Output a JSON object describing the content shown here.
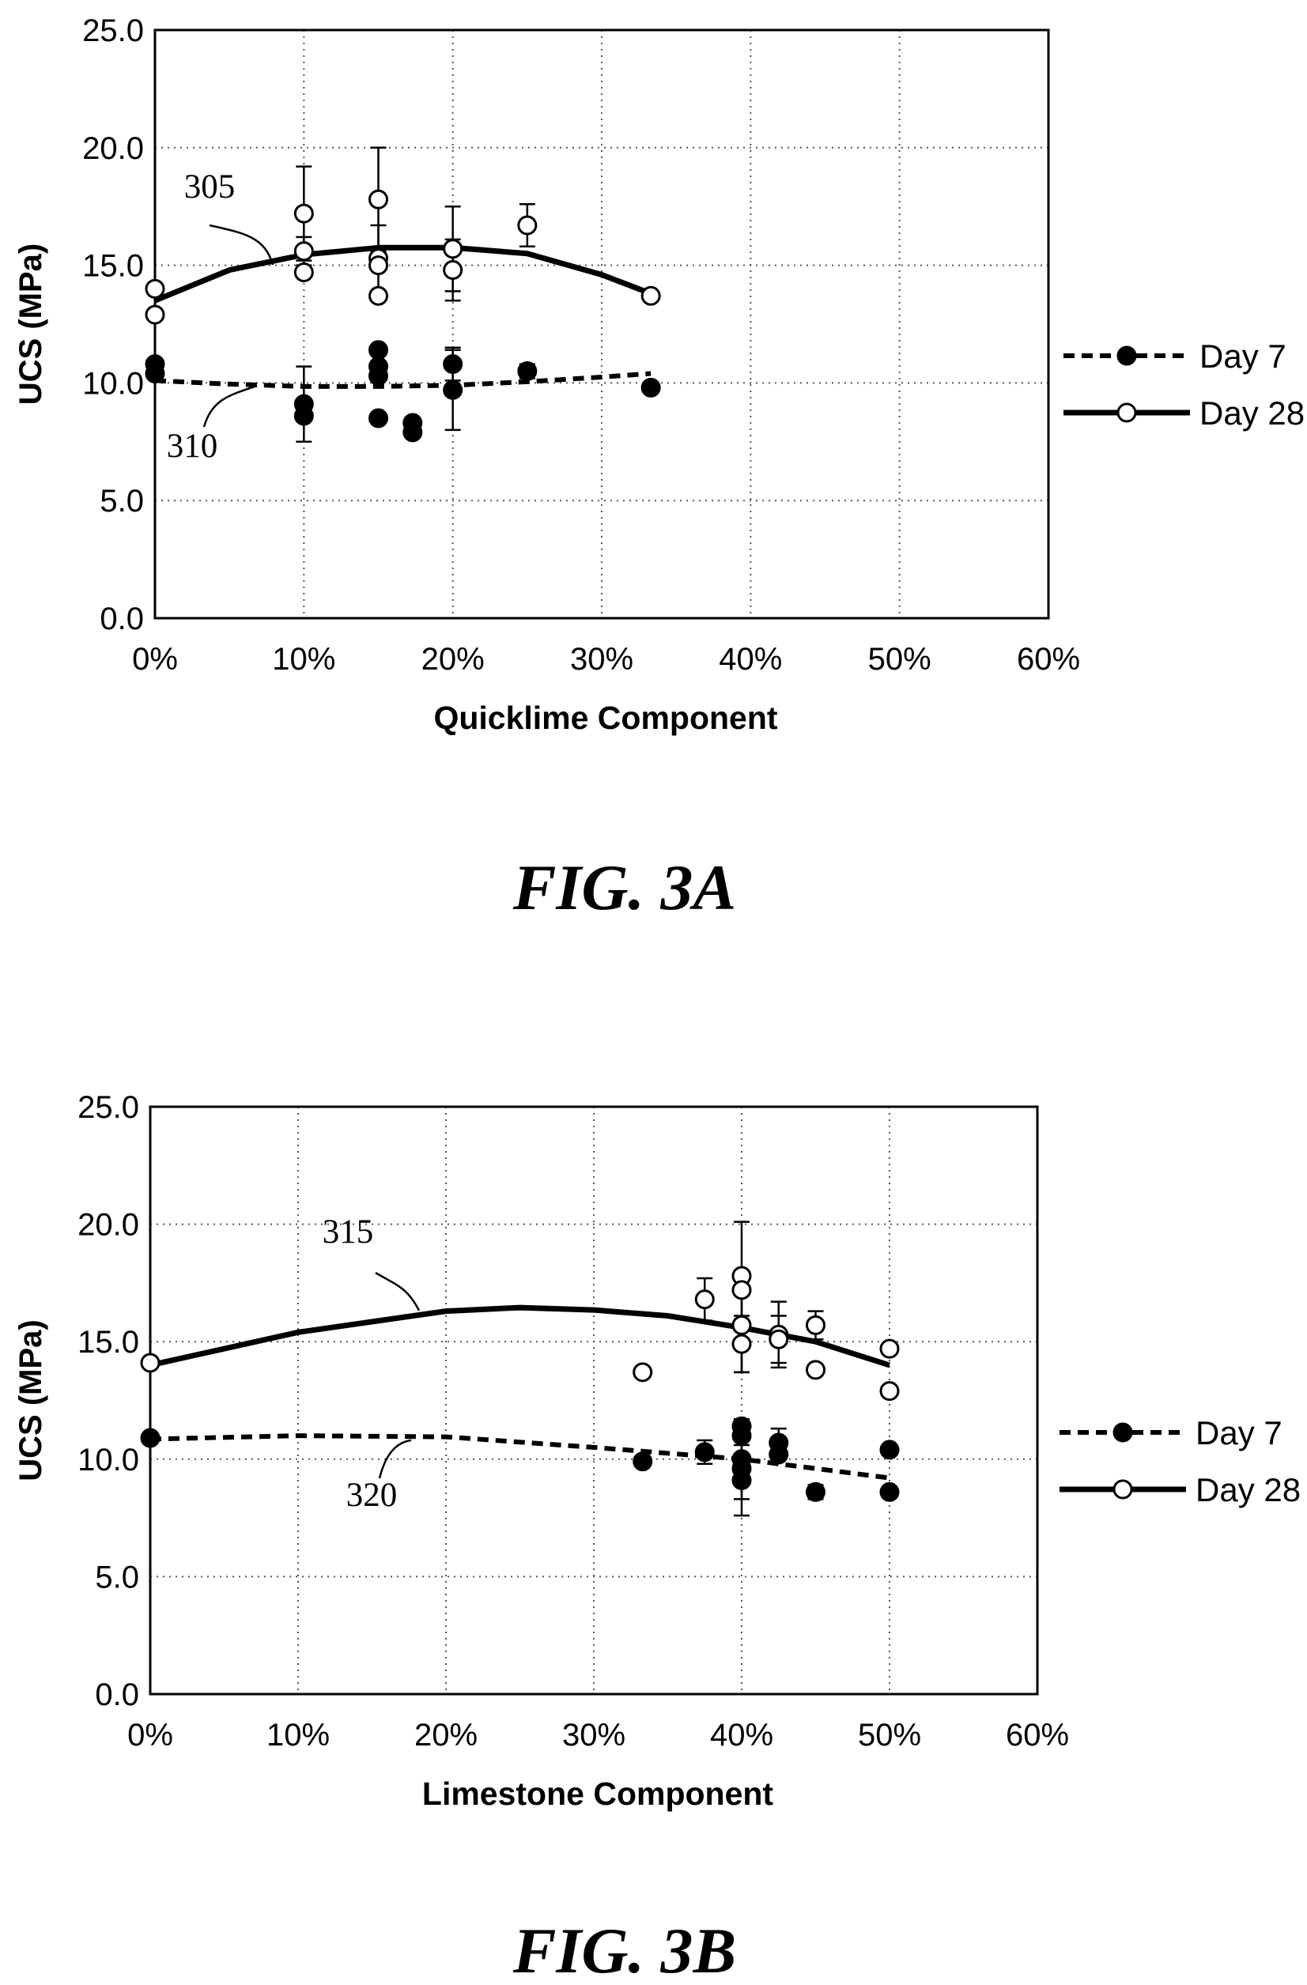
{
  "chart_data": [
    {
      "type": "scatter",
      "figure_label": "FIG. 3A",
      "xlabel": "Quicklime Component",
      "ylabel": "UCS (MPa)",
      "xlim": [
        0,
        60
      ],
      "ylim": [
        0,
        25
      ],
      "x_unit": "%",
      "xticks": [
        "0%",
        "10%",
        "20%",
        "30%",
        "40%",
        "50%",
        "60%"
      ],
      "yticks": [
        "0.0",
        "5.0",
        "10.0",
        "15.0",
        "20.0",
        "25.0"
      ],
      "grid": "dotted",
      "legend_position": "right",
      "series": [
        {
          "name": "Day 7",
          "marker": "filled-circle",
          "trend_style": "dashed",
          "points": [
            {
              "x": 0,
              "y": 10.8
            },
            {
              "x": 0,
              "y": 10.4
            },
            {
              "x": 10,
              "y": 9.1,
              "err": 1.6
            },
            {
              "x": 10,
              "y": 8.6
            },
            {
              "x": 15,
              "y": 11.4
            },
            {
              "x": 15,
              "y": 10.7
            },
            {
              "x": 15,
              "y": 10.3
            },
            {
              "x": 15,
              "y": 8.5
            },
            {
              "x": 17.3,
              "y": 8.3
            },
            {
              "x": 17.3,
              "y": 7.9
            },
            {
              "x": 20,
              "y": 10.8,
              "err": 0.7
            },
            {
              "x": 20,
              "y": 9.7,
              "err": 1.7
            },
            {
              "x": 25,
              "y": 10.5,
              "err": 0.3
            },
            {
              "x": 33.3,
              "y": 9.8
            }
          ],
          "trend": [
            [
              0,
              10.1
            ],
            [
              5,
              9.95
            ],
            [
              10,
              9.85
            ],
            [
              15,
              9.85
            ],
            [
              20,
              9.9
            ],
            [
              25,
              10.05
            ],
            [
              30,
              10.25
            ],
            [
              33.3,
              10.4
            ]
          ]
        },
        {
          "name": "Day 28",
          "marker": "open-circle",
          "trend_style": "solid",
          "points": [
            {
              "x": 0,
              "y": 14.0
            },
            {
              "x": 0,
              "y": 12.9
            },
            {
              "x": 10,
              "y": 17.2,
              "err": 2.0
            },
            {
              "x": 10,
              "y": 15.6,
              "err": 0.6
            },
            {
              "x": 10,
              "y": 14.7
            },
            {
              "x": 15,
              "y": 17.8,
              "err": 2.2
            },
            {
              "x": 15,
              "y": 15.3,
              "err": 1.4
            },
            {
              "x": 15,
              "y": 15.0
            },
            {
              "x": 15,
              "y": 13.7
            },
            {
              "x": 20,
              "y": 15.7,
              "err": 1.8
            },
            {
              "x": 20,
              "y": 14.8,
              "err": 1.3
            },
            {
              "x": 25,
              "y": 16.7,
              "err": 0.9
            },
            {
              "x": 33.3,
              "y": 13.7
            }
          ],
          "trend": [
            [
              0,
              13.5
            ],
            [
              5,
              14.8
            ],
            [
              10,
              15.45
            ],
            [
              15,
              15.75
            ],
            [
              20,
              15.75
            ],
            [
              25,
              15.5
            ],
            [
              30,
              14.6
            ],
            [
              33.3,
              13.8
            ]
          ]
        }
      ],
      "annotations": [
        {
          "label": "305",
          "target": "Day 28 trend"
        },
        {
          "label": "310",
          "target": "Day 7 trend"
        }
      ]
    },
    {
      "type": "scatter",
      "figure_label": "FIG. 3B",
      "xlabel": "Limestone Component",
      "ylabel": "UCS (MPa)",
      "xlim": [
        0,
        60
      ],
      "ylim": [
        0,
        25
      ],
      "x_unit": "%",
      "xticks": [
        "0%",
        "10%",
        "20%",
        "30%",
        "40%",
        "50%",
        "60%"
      ],
      "yticks": [
        "0.0",
        "5.0",
        "10.0",
        "15.0",
        "20.0",
        "25.0"
      ],
      "grid": "dotted",
      "legend_position": "right",
      "series": [
        {
          "name": "Day 7",
          "marker": "filled-circle",
          "trend_style": "dashed",
          "points": [
            {
              "x": 0,
              "y": 10.9
            },
            {
              "x": 33.3,
              "y": 9.9
            },
            {
              "x": 37.5,
              "y": 10.3,
              "err": 0.5
            },
            {
              "x": 40,
              "y": 11.4
            },
            {
              "x": 40,
              "y": 11.0
            },
            {
              "x": 40,
              "y": 10.0,
              "err": 1.7
            },
            {
              "x": 40,
              "y": 9.6
            },
            {
              "x": 40,
              "y": 9.1,
              "err": 1.5
            },
            {
              "x": 42.5,
              "y": 10.7,
              "err": 0.6
            },
            {
              "x": 42.5,
              "y": 10.2
            },
            {
              "x": 45,
              "y": 8.6,
              "err": 0.3
            },
            {
              "x": 50,
              "y": 10.4
            },
            {
              "x": 50,
              "y": 8.6
            }
          ],
          "trend": [
            [
              0,
              10.85
            ],
            [
              10,
              11.0
            ],
            [
              20,
              10.95
            ],
            [
              30,
              10.5
            ],
            [
              40,
              10.0
            ],
            [
              45,
              9.6
            ],
            [
              50,
              9.2
            ]
          ]
        },
        {
          "name": "Day 28",
          "marker": "open-circle",
          "trend_style": "solid",
          "points": [
            {
              "x": 0,
              "y": 14.1
            },
            {
              "x": 33.3,
              "y": 13.7
            },
            {
              "x": 37.5,
              "y": 16.8,
              "err": 0.9
            },
            {
              "x": 40,
              "y": 17.8,
              "err": 2.3
            },
            {
              "x": 40,
              "y": 17.2
            },
            {
              "x": 40,
              "y": 15.7,
              "err": 2.0
            },
            {
              "x": 40,
              "y": 14.9,
              "err": 1.2
            },
            {
              "x": 42.5,
              "y": 15.3,
              "err": 1.4
            },
            {
              "x": 42.5,
              "y": 15.1,
              "err": 1.0
            },
            {
              "x": 45,
              "y": 15.7,
              "err": 0.6
            },
            {
              "x": 45,
              "y": 13.8
            },
            {
              "x": 50,
              "y": 14.7
            },
            {
              "x": 50,
              "y": 12.9
            }
          ],
          "trend": [
            [
              0,
              14.0
            ],
            [
              10,
              15.4
            ],
            [
              20,
              16.3
            ],
            [
              25,
              16.45
            ],
            [
              30,
              16.35
            ],
            [
              35,
              16.1
            ],
            [
              40,
              15.6
            ],
            [
              45,
              15.0
            ],
            [
              50,
              14.0
            ]
          ]
        }
      ],
      "annotations": [
        {
          "label": "315",
          "target": "Day 28 trend"
        },
        {
          "label": "320",
          "target": "Day 7 trend"
        }
      ]
    }
  ]
}
